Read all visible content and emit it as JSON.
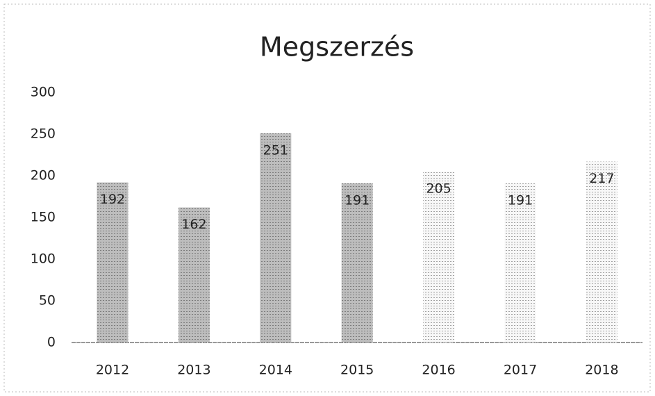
{
  "chart_data": {
    "type": "bar",
    "title": "Megszerzés",
    "categories": [
      "2012",
      "2013",
      "2014",
      "2015",
      "2016",
      "2017",
      "2018"
    ],
    "values": [
      192,
      162,
      251,
      191,
      205,
      191,
      217
    ],
    "colors": [
      "#bdbdbd",
      "#bdbdbd",
      "#bdbdbd",
      "#bdbdbd",
      "#f7f7f7",
      "#f7f7f7",
      "#f7f7f7"
    ],
    "ylim": [
      0,
      300
    ],
    "yticks": [
      0,
      50,
      100,
      150,
      200,
      250,
      300
    ],
    "grid": false
  }
}
